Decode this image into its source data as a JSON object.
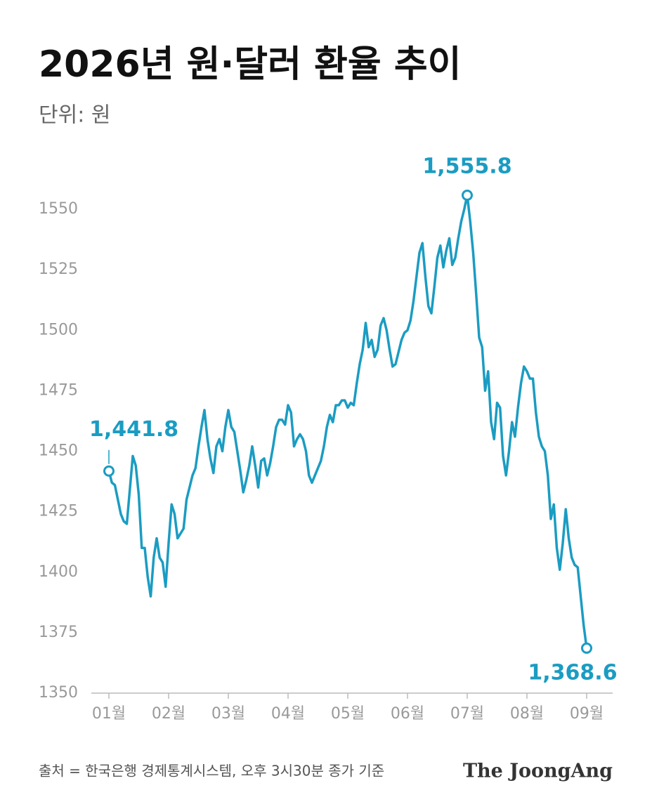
{
  "chart_data": {
    "type": "line",
    "title": "2026년 원·달러 환율 추이",
    "subtitle": "단위: 원",
    "source": "출처 = 한국은행 경제통계시스템, 오후 3시30분 종가 기준",
    "brand": "The JoongAng",
    "categories": [
      "01월",
      null,
      null,
      null,
      null,
      null,
      null,
      null,
      null,
      null,
      null,
      null,
      null,
      null,
      null,
      null,
      null,
      null,
      null,
      null,
      "02월",
      null,
      null,
      null,
      null,
      null,
      null,
      null,
      null,
      null,
      null,
      null,
      null,
      null,
      null,
      null,
      null,
      null,
      null,
      null,
      "03월",
      null,
      null,
      null,
      null,
      null,
      null,
      null,
      null,
      null,
      null,
      null,
      null,
      null,
      null,
      null,
      null,
      null,
      null,
      null,
      "04월",
      null,
      null,
      null,
      null,
      null,
      null,
      null,
      null,
      null,
      null,
      null,
      null,
      null,
      null,
      null,
      null,
      null,
      null,
      null,
      "05월",
      null,
      null,
      null,
      null,
      null,
      null,
      null,
      null,
      null,
      null,
      null,
      null,
      null,
      null,
      null,
      null,
      null,
      null,
      null,
      "06월",
      null,
      null,
      null,
      null,
      null,
      null,
      null,
      null,
      null,
      null,
      null,
      null,
      null,
      null,
      null,
      null,
      null,
      null,
      null,
      "07월",
      null,
      null,
      null,
      null,
      null,
      null,
      null,
      null,
      null,
      null,
      null,
      null,
      null,
      null,
      null,
      null,
      null,
      null,
      null,
      "08월",
      null,
      null,
      null,
      null,
      null,
      null,
      null,
      null,
      null,
      null,
      null,
      null,
      null,
      null,
      null,
      null,
      null,
      null,
      null,
      "09월"
    ],
    "values": [
      1441.8,
      1437,
      1436,
      1430,
      1424,
      1421,
      1420,
      1434,
      1448,
      1444,
      1432,
      1410,
      1410,
      1398,
      1390,
      1406,
      1414,
      1406,
      1404,
      1394,
      1412,
      1428,
      1424,
      1414,
      1416,
      1418,
      1430,
      1435,
      1440,
      1443,
      1452,
      1460,
      1467,
      1455,
      1447,
      1441,
      1452,
      1455,
      1450,
      1460,
      1467,
      1460,
      1458,
      1450,
      1442,
      1433,
      1438,
      1444,
      1452,
      1444,
      1435,
      1446,
      1447,
      1440,
      1445,
      1452,
      1460,
      1463,
      1463,
      1461,
      1469,
      1466,
      1452,
      1455,
      1457,
      1455,
      1450,
      1440,
      1437,
      1440,
      1443,
      1446,
      1452,
      1460,
      1465,
      1462,
      1469,
      1469,
      1471,
      1471,
      1468,
      1470,
      1469,
      1478,
      1486,
      1492,
      1503,
      1493,
      1496,
      1489,
      1492,
      1502,
      1505,
      1500,
      1492,
      1485,
      1486,
      1491,
      1496,
      1499,
      1500,
      1504,
      1512,
      1522,
      1532,
      1536,
      1522,
      1510,
      1507,
      1518,
      1530,
      1535,
      1526,
      1533,
      1538,
      1527,
      1530,
      1538,
      1545,
      1550,
      1555.8,
      1545,
      1532,
      1515,
      1497,
      1493,
      1475,
      1483,
      1462,
      1455,
      1470,
      1468,
      1448,
      1440,
      1450,
      1462,
      1456,
      1468,
      1478,
      1485,
      1483,
      1480,
      1480,
      1466,
      1456,
      1452,
      1450,
      1440,
      1422,
      1428,
      1410,
      1401,
      1412,
      1426,
      1414,
      1406,
      1403,
      1402,
      1390,
      1378,
      1368.6
    ],
    "value_labels": [
      "1,441.8",
      null,
      null,
      null,
      null,
      null,
      null,
      null,
      null,
      null,
      null,
      null,
      null,
      null,
      null,
      null,
      null,
      null,
      null,
      null,
      null,
      null,
      null,
      null,
      null,
      null,
      null,
      null,
      null,
      null,
      null,
      null,
      null,
      null,
      null,
      null,
      null,
      null,
      null,
      null,
      null,
      null,
      null,
      null,
      null,
      null,
      null,
      null,
      null,
      null,
      null,
      null,
      null,
      null,
      null,
      null,
      null,
      null,
      null,
      null,
      null,
      null,
      null,
      null,
      null,
      null,
      null,
      null,
      null,
      null,
      null,
      null,
      null,
      null,
      null,
      null,
      null,
      null,
      null,
      null,
      null,
      null,
      null,
      null,
      null,
      null,
      null,
      null,
      null,
      null,
      null,
      null,
      null,
      null,
      null,
      null,
      null,
      null,
      null,
      null,
      null,
      null,
      null,
      null,
      null,
      null,
      null,
      null,
      null,
      null,
      null,
      null,
      null,
      null,
      null,
      null,
      null,
      null,
      null,
      null,
      "1,555.8",
      null,
      null,
      null,
      null,
      null,
      null,
      null,
      null,
      null,
      null,
      null,
      null,
      null,
      null,
      null,
      null,
      null,
      null,
      null,
      null,
      null,
      null,
      null,
      null,
      null,
      null,
      null,
      null,
      null,
      null,
      null,
      null,
      null,
      null,
      null,
      null,
      null,
      null,
      null,
      "1,368.6"
    ],
    "color": "#1b9cc2",
    "ylim": [
      1350,
      1560
    ],
    "yticks": [
      1350,
      1375,
      1400,
      1425,
      1450,
      1475,
      1500,
      1525,
      1550
    ]
  }
}
